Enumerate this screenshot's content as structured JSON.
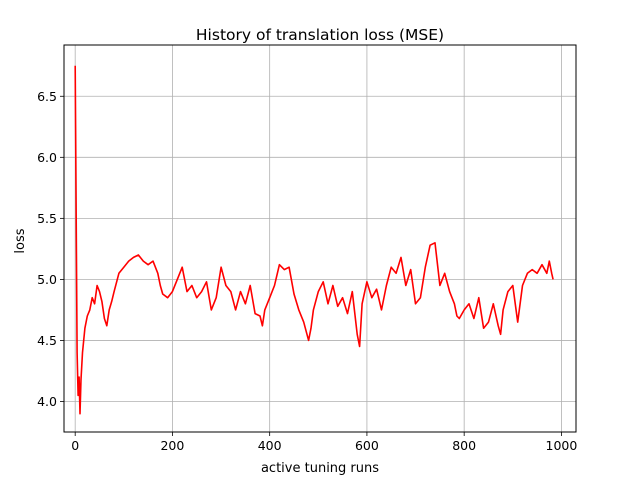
{
  "chart_data": {
    "type": "line",
    "title": "History of translation loss (MSE)",
    "xlabel": "active tuning runs",
    "ylabel": "loss",
    "xlim": [
      -23,
      1030
    ],
    "ylim": [
      3.75,
      6.92
    ],
    "x_ticks": [
      0,
      200,
      400,
      600,
      800,
      1000
    ],
    "y_ticks": [
      4.0,
      4.5,
      5.0,
      5.5,
      6.0,
      6.5
    ],
    "grid": true,
    "series": [
      {
        "color": "#ff0000",
        "x": [
          0,
          2,
          4,
          6,
          8,
          10,
          12,
          15,
          20,
          25,
          30,
          35,
          40,
          45,
          50,
          55,
          60,
          65,
          70,
          75,
          80,
          90,
          100,
          110,
          120,
          130,
          140,
          150,
          160,
          170,
          175,
          180,
          190,
          200,
          210,
          220,
          230,
          240,
          250,
          260,
          270,
          280,
          290,
          300,
          310,
          320,
          330,
          340,
          350,
          360,
          370,
          380,
          385,
          390,
          400,
          410,
          420,
          430,
          440,
          450,
          460,
          470,
          480,
          485,
          490,
          500,
          510,
          520,
          530,
          540,
          550,
          560,
          570,
          580,
          585,
          590,
          600,
          610,
          620,
          630,
          640,
          650,
          660,
          670,
          680,
          690,
          700,
          710,
          720,
          730,
          740,
          750,
          760,
          770,
          780,
          785,
          790,
          800,
          810,
          820,
          830,
          840,
          850,
          860,
          870,
          875,
          880,
          890,
          900,
          910,
          920,
          930,
          940,
          950,
          960,
          970,
          975,
          980,
          983
        ],
        "y": [
          6.75,
          5.5,
          4.4,
          4.05,
          4.2,
          3.9,
          4.18,
          4.4,
          4.6,
          4.7,
          4.75,
          4.85,
          4.8,
          4.95,
          4.9,
          4.82,
          4.68,
          4.62,
          4.75,
          4.82,
          4.9,
          5.05,
          5.1,
          5.15,
          5.18,
          5.2,
          5.15,
          5.12,
          5.15,
          5.05,
          4.95,
          4.88,
          4.85,
          4.9,
          5.0,
          5.1,
          4.9,
          4.95,
          4.85,
          4.9,
          4.98,
          4.75,
          4.85,
          5.1,
          4.95,
          4.9,
          4.75,
          4.9,
          4.8,
          4.95,
          4.72,
          4.7,
          4.62,
          4.75,
          4.85,
          4.95,
          5.12,
          5.08,
          5.1,
          4.88,
          4.75,
          4.65,
          4.5,
          4.6,
          4.75,
          4.9,
          4.98,
          4.8,
          4.95,
          4.78,
          4.85,
          4.72,
          4.9,
          4.55,
          4.45,
          4.8,
          4.98,
          4.85,
          4.92,
          4.75,
          4.95,
          5.1,
          5.05,
          5.18,
          4.95,
          5.08,
          4.8,
          4.85,
          5.1,
          5.28,
          5.3,
          4.95,
          5.05,
          4.9,
          4.8,
          4.7,
          4.68,
          4.75,
          4.8,
          4.68,
          4.85,
          4.6,
          4.65,
          4.8,
          4.62,
          4.55,
          4.75,
          4.9,
          4.95,
          4.65,
          4.95,
          5.05,
          5.08,
          5.05,
          5.12,
          5.05,
          5.15,
          5.05,
          5.0
        ]
      }
    ]
  }
}
